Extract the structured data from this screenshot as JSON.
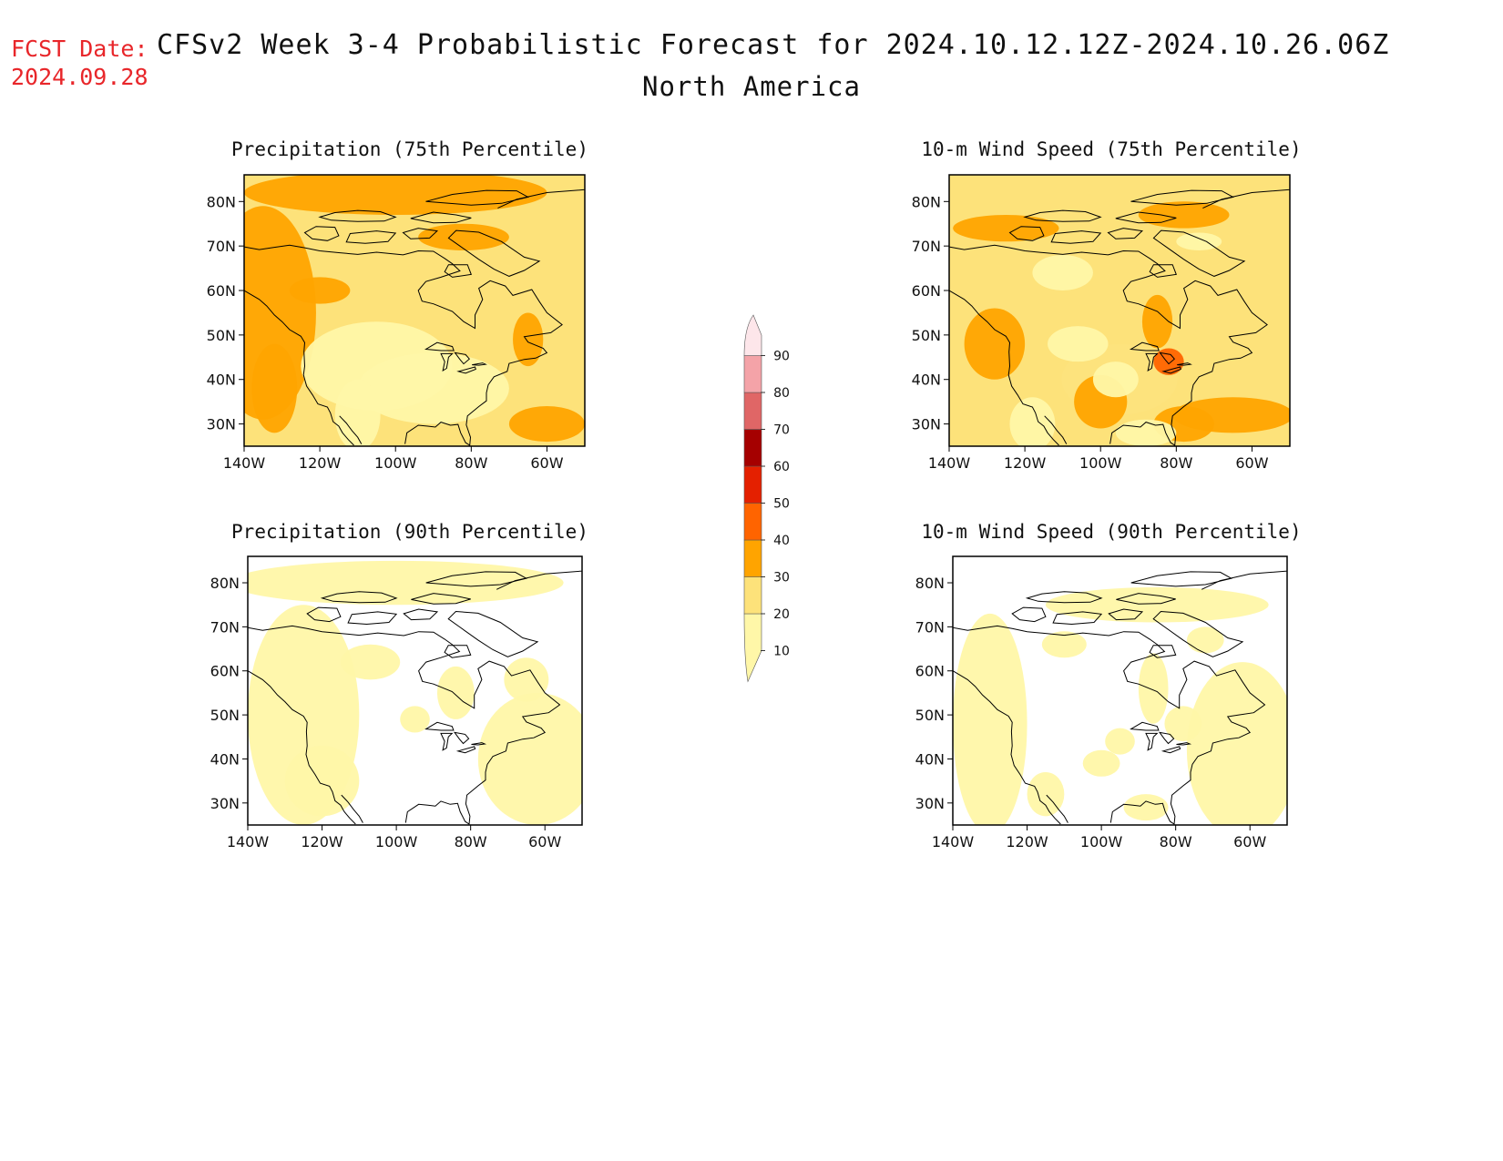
{
  "header": {
    "fcst_label": "FCST Date:",
    "fcst_date": "2024.09.28",
    "title": "CFSv2 Week 3-4 Probabilistic Forecast for 2024.10.12.12Z-2024.10.26.06Z",
    "subtitle": "North America"
  },
  "panels": [
    {
      "id": "precip75",
      "title": "Precipitation (75th Percentile)"
    },
    {
      "id": "wind75",
      "title": "10-m Wind Speed (75th Percentile)"
    },
    {
      "id": "precip90",
      "title": "Precipitation (90th Percentile)"
    },
    {
      "id": "wind90",
      "title": "10-m Wind Speed (90th Percentile)"
    }
  ],
  "axes": {
    "lat_labels": [
      "80N",
      "70N",
      "60N",
      "50N",
      "40N",
      "30N"
    ],
    "lon_labels": [
      "140W",
      "120W",
      "100W",
      "80W",
      "60W"
    ]
  },
  "colorbar": {
    "levels": [
      "10",
      "20",
      "30",
      "40",
      "50",
      "60",
      "70",
      "80",
      "90"
    ],
    "colors": [
      "#fff7a8",
      "#fde27a",
      "#ffa400",
      "#ff6400",
      "#e42000",
      "#a50000",
      "#e06666",
      "#f4a3a8",
      "#fde6ea"
    ]
  }
}
